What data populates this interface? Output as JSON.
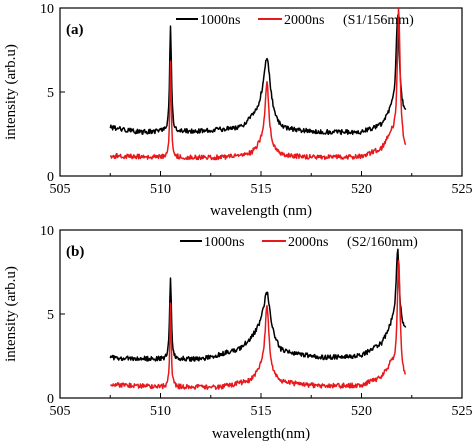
{
  "chart_data": [
    {
      "type": "line",
      "panel_label": "(a)",
      "annotation": "(S1/156mm)",
      "xlabel": "wavelength (nm)",
      "ylabel": "intensity (arb.u)",
      "xlim": [
        505,
        525
      ],
      "ylim": [
        0,
        10
      ],
      "xticks": [
        "505",
        "510",
        "515",
        "520",
        "525"
      ],
      "yticks": [
        "0",
        "5",
        "10"
      ],
      "grid": false,
      "legend_position": "top",
      "series": [
        {
          "name": "1000ns",
          "color": "#000000",
          "baseline": [
            [
              507.5,
              2.9
            ],
            [
              509.0,
              2.6
            ],
            [
              510.0,
              2.65
            ],
            [
              512.0,
              2.65
            ],
            [
              514.0,
              2.85
            ],
            [
              515.0,
              3.8
            ],
            [
              516.0,
              2.75
            ],
            [
              518.0,
              2.6
            ],
            [
              520.0,
              2.6
            ],
            [
              521.0,
              3.0
            ],
            [
              521.5,
              3.8
            ],
            [
              522.2,
              3.6
            ]
          ],
          "peaks": [
            {
              "x": 510.5,
              "y": 9.0,
              "width": 0.05
            },
            {
              "x": 515.3,
              "y": 7.0,
              "width": 0.2
            },
            {
              "x": 521.8,
              "y": 9.5,
              "width": 0.1
            }
          ]
        },
        {
          "name": "2000ns",
          "color": "#e8191c",
          "baseline": [
            [
              507.5,
              1.2
            ],
            [
              510.0,
              1.1
            ],
            [
              513.0,
              1.1
            ],
            [
              514.5,
              1.3
            ],
            [
              515.0,
              1.8
            ],
            [
              516.0,
              1.2
            ],
            [
              518.0,
              1.1
            ],
            [
              520.0,
              1.15
            ],
            [
              521.0,
              1.6
            ],
            [
              521.5,
              2.5
            ],
            [
              522.2,
              1.5
            ]
          ],
          "peaks": [
            {
              "x": 510.5,
              "y": 6.8,
              "width": 0.04
            },
            {
              "x": 515.3,
              "y": 5.5,
              "width": 0.12
            },
            {
              "x": 521.85,
              "y": 10.0,
              "width": 0.08
            }
          ]
        }
      ]
    },
    {
      "type": "line",
      "panel_label": "(b)",
      "annotation": "(S2/160mm)",
      "xlabel": "wavelength(nm)",
      "ylabel": "intensity (arb.u)",
      "xlim": [
        505,
        525
      ],
      "ylim": [
        0,
        10
      ],
      "xticks": [
        "505",
        "510",
        "515",
        "520",
        "525"
      ],
      "yticks": [
        "0",
        "5",
        "10"
      ],
      "grid": false,
      "legend_position": "top",
      "series": [
        {
          "name": "1000ns",
          "color": "#000000",
          "baseline": [
            [
              507.5,
              2.4
            ],
            [
              510.0,
              2.3
            ],
            [
              512.0,
              2.3
            ],
            [
              514.0,
              2.9
            ],
            [
              515.0,
              4.0
            ],
            [
              516.0,
              2.7
            ],
            [
              518.0,
              2.4
            ],
            [
              520.0,
              2.5
            ],
            [
              521.0,
              3.2
            ],
            [
              521.5,
              4.2
            ],
            [
              522.2,
              3.8
            ]
          ],
          "peaks": [
            {
              "x": 510.5,
              "y": 7.2,
              "width": 0.05
            },
            {
              "x": 515.3,
              "y": 6.3,
              "width": 0.2
            },
            {
              "x": 521.8,
              "y": 8.8,
              "width": 0.1
            }
          ]
        },
        {
          "name": "2000ns",
          "color": "#e8191c",
          "baseline": [
            [
              507.5,
              0.8
            ],
            [
              510.0,
              0.65
            ],
            [
              513.0,
              0.65
            ],
            [
              514.5,
              1.0
            ],
            [
              515.0,
              1.6
            ],
            [
              516.0,
              0.9
            ],
            [
              518.0,
              0.7
            ],
            [
              520.0,
              0.75
            ],
            [
              521.0,
              1.2
            ],
            [
              521.5,
              2.0
            ],
            [
              522.2,
              1.0
            ]
          ],
          "peaks": [
            {
              "x": 510.5,
              "y": 5.6,
              "width": 0.04
            },
            {
              "x": 515.3,
              "y": 5.5,
              "width": 0.12
            },
            {
              "x": 521.85,
              "y": 8.2,
              "width": 0.08
            }
          ]
        }
      ]
    }
  ]
}
